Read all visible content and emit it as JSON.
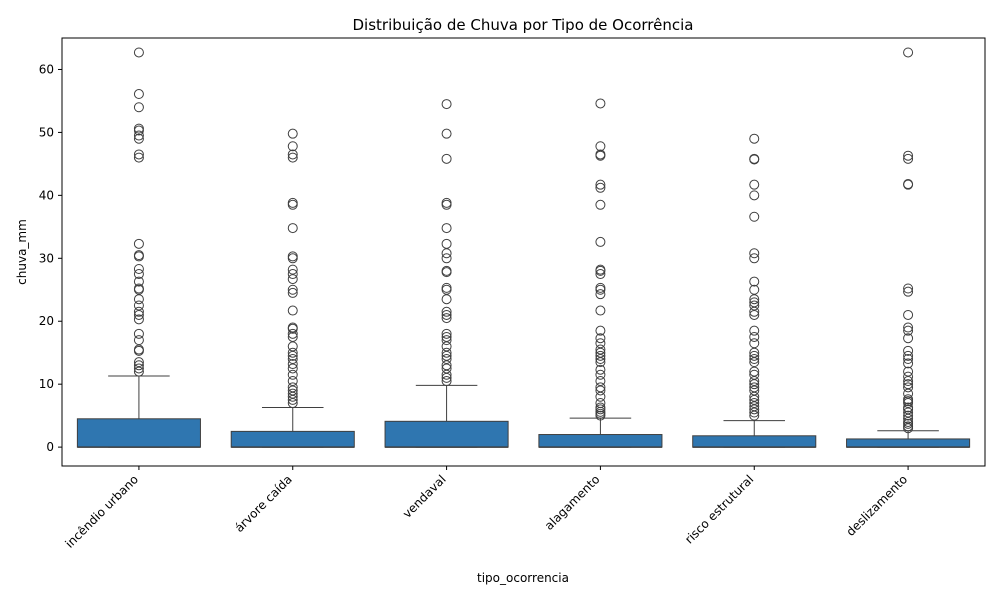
{
  "chart_data": {
    "type": "box",
    "title": "Distribuição de Chuva por Tipo de Ocorrência",
    "xlabel": "tipo_ocorrencia",
    "ylabel": "chuva_mm",
    "ylim": [
      -3,
      65
    ],
    "yticks": [
      0,
      10,
      20,
      30,
      40,
      50,
      60
    ],
    "grid": false,
    "color": "#2f76b0",
    "categories": [
      "incêndio urbano",
      "árvore caída",
      "vendaval",
      "alagamento",
      "risco estrutural",
      "deslizamento"
    ],
    "boxes": [
      {
        "category": "incêndio urbano",
        "min": 0,
        "q1": 0,
        "median": 0,
        "q3": 4.5,
        "whisker_high": 11.3,
        "outliers": [
          12,
          12.5,
          13,
          13.5,
          15.3,
          15.5,
          17,
          18,
          20.3,
          21,
          21.5,
          22.5,
          23.5,
          25,
          25.2,
          26.3,
          27.5,
          28.3,
          30.3,
          30.5,
          32.3,
          46,
          46.5,
          49,
          49.5,
          50.3,
          50.6,
          54,
          56.1,
          62.7
        ]
      },
      {
        "category": "árvore caída",
        "min": 0,
        "q1": 0,
        "median": 0,
        "q3": 2.5,
        "whisker_high": 6.3,
        "outliers": [
          7,
          7.5,
          8,
          8.5,
          9,
          9.5,
          10.5,
          11.5,
          12.5,
          13.2,
          14,
          14.5,
          15,
          16,
          17.5,
          18,
          18.8,
          19,
          21.7,
          24.5,
          25,
          26.7,
          27.5,
          28.2,
          30,
          30.3,
          34.8,
          38.5,
          38.8,
          46,
          46.5,
          47.8,
          49.8
        ]
      },
      {
        "category": "vendaval",
        "min": 0,
        "q1": 0,
        "median": 0,
        "q3": 4.1,
        "whisker_high": 9.8,
        "outliers": [
          10.5,
          11,
          11.5,
          12.5,
          13,
          14,
          14.5,
          15,
          16,
          17,
          17.5,
          18,
          20.5,
          21,
          21.5,
          23.5,
          25,
          25.3,
          27.8,
          28,
          30,
          30.8,
          32.3,
          34.8,
          38.5,
          38.8,
          45.8,
          49.8,
          54.5
        ]
      },
      {
        "category": "alagamento",
        "min": 0,
        "q1": 0,
        "median": 0,
        "q3": 2,
        "whisker_high": 4.6,
        "outliers": [
          5,
          5.3,
          5.6,
          6,
          6.3,
          7,
          8,
          9,
          9.5,
          10.5,
          11.5,
          12.3,
          13.5,
          14,
          14.5,
          15,
          15.5,
          16.5,
          17.3,
          18.5,
          21.7,
          24.3,
          25,
          25.3,
          27.5,
          28,
          28.2,
          32.6,
          38.5,
          41.2,
          41.7,
          46.3,
          46.5,
          47.8,
          54.6
        ]
      },
      {
        "category": "risco estrutural",
        "min": 0,
        "q1": 0,
        "median": 0,
        "q3": 1.8,
        "whisker_high": 4.2,
        "outliers": [
          5,
          5.5,
          6,
          6.5,
          7,
          7.5,
          8,
          9,
          9.5,
          10,
          10.5,
          11.5,
          12,
          13.5,
          14,
          14.5,
          15,
          16.5,
          17.5,
          18.5,
          21,
          21.5,
          22.5,
          23,
          23.5,
          25,
          26.3,
          30,
          30.8,
          36.6,
          40,
          41.7,
          45.7,
          45.8,
          49
        ]
      },
      {
        "category": "deslizamento",
        "min": 0,
        "q1": 0,
        "median": 0,
        "q3": 1.3,
        "whisker_high": 2.6,
        "outliers": [
          3,
          3.3,
          3.7,
          4,
          4.5,
          5,
          5.5,
          6,
          6.3,
          7,
          7.3,
          7.6,
          8.5,
          9.5,
          10,
          10.5,
          11.2,
          12,
          13.3,
          14,
          14.5,
          15.3,
          17.3,
          18.5,
          19,
          21,
          24.7,
          25.2,
          41.7,
          41.8,
          45.8,
          46.3,
          62.7
        ]
      }
    ]
  }
}
